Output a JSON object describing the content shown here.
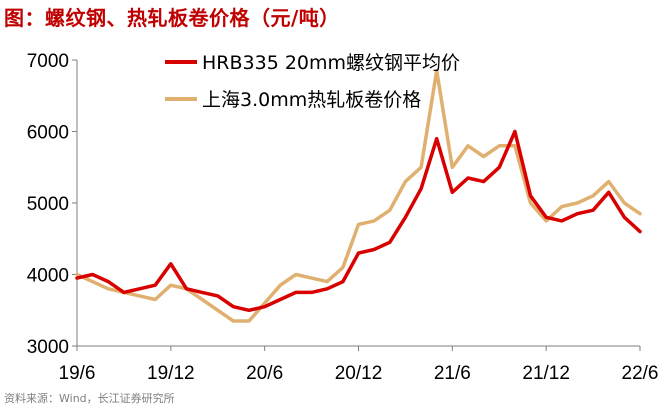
{
  "chart_data": {
    "type": "line",
    "title": "图：螺纹钢、热轧板卷价格（元/吨）",
    "source": "资料来源：Wind，长江证券研究所",
    "x_tick_labels": [
      "19/6",
      "19/12",
      "20/6",
      "20/12",
      "21/6",
      "21/12",
      "22/6"
    ],
    "y_ticks": [
      3000,
      4000,
      5000,
      6000,
      7000
    ],
    "ylim": [
      3000,
      7000
    ],
    "x_range": [
      "2019-06",
      "2022-06"
    ],
    "grid": false,
    "legend_position": "top",
    "series": [
      {
        "name": "HRB335 20mm螺纹钢平均价",
        "color": "#d90000",
        "x": [
          "2019-06",
          "2019-07",
          "2019-08",
          "2019-09",
          "2019-10",
          "2019-11",
          "2019-12",
          "2020-01",
          "2020-02",
          "2020-03",
          "2020-04",
          "2020-05",
          "2020-06",
          "2020-07",
          "2020-08",
          "2020-09",
          "2020-10",
          "2020-11",
          "2020-12",
          "2021-01",
          "2021-02",
          "2021-03",
          "2021-04",
          "2021-05",
          "2021-06",
          "2021-07",
          "2021-08",
          "2021-09",
          "2021-10",
          "2021-11",
          "2021-12",
          "2022-01",
          "2022-02",
          "2022-03",
          "2022-04",
          "2022-05",
          "2022-06"
        ],
        "values": [
          3950,
          4000,
          3900,
          3750,
          3800,
          3850,
          4150,
          3800,
          3750,
          3700,
          3550,
          3500,
          3550,
          3650,
          3750,
          3750,
          3800,
          3900,
          4300,
          4350,
          4450,
          4800,
          5200,
          5900,
          5150,
          5350,
          5300,
          5500,
          6000,
          5100,
          4800,
          4750,
          4850,
          4900,
          5150,
          4800,
          4600
        ]
      },
      {
        "name": "上海3.0mm热轧板卷价格",
        "color": "#e0b070",
        "x": [
          "2019-06",
          "2019-07",
          "2019-08",
          "2019-09",
          "2019-10",
          "2019-11",
          "2019-12",
          "2020-01",
          "2020-02",
          "2020-03",
          "2020-04",
          "2020-05",
          "2020-06",
          "2020-07",
          "2020-08",
          "2020-09",
          "2020-10",
          "2020-11",
          "2020-12",
          "2021-01",
          "2021-02",
          "2021-03",
          "2021-04",
          "2021-05",
          "2021-06",
          "2021-07",
          "2021-08",
          "2021-09",
          "2021-10",
          "2021-11",
          "2021-12",
          "2022-01",
          "2022-02",
          "2022-03",
          "2022-04",
          "2022-05",
          "2022-06"
        ],
        "values": [
          4000,
          3900,
          3800,
          3750,
          3700,
          3650,
          3850,
          3800,
          3650,
          3500,
          3350,
          3350,
          3600,
          3850,
          4000,
          3950,
          3900,
          4100,
          4700,
          4750,
          4900,
          5300,
          5500,
          6850,
          5500,
          5800,
          5650,
          5800,
          5800,
          5000,
          4750,
          4950,
          5000,
          5100,
          5300,
          5000,
          4850
        ]
      }
    ]
  }
}
